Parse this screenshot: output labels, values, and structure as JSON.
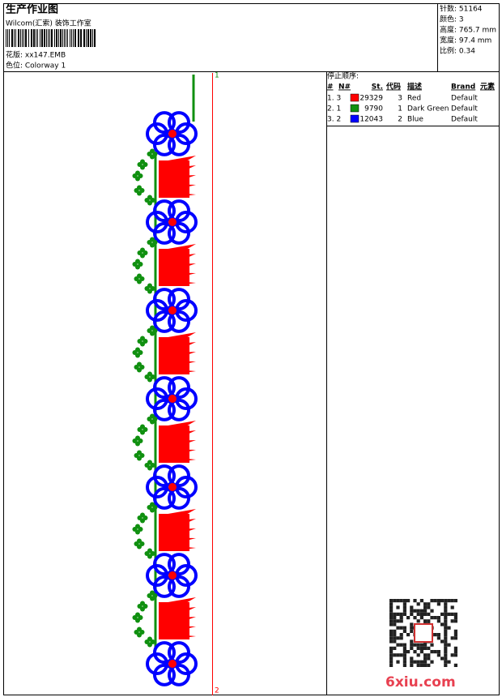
{
  "header": {
    "title": "生产作业图",
    "studio": "Wilcom(汇索) 装饰工作室",
    "design": "花版: xx147.EMB",
    "colorway": "色位: Colorway 1",
    "stats": [
      "针数: 51164",
      "颜色: 3",
      "高度: 765.7 mm",
      "宽度: 97.4 mm",
      "比例: 0.34"
    ]
  },
  "stop_sequence": {
    "title": "停止顺序:",
    "columns": [
      "#",
      "N#",
      "St.",
      "代码",
      "描述",
      "Brand",
      "元素"
    ],
    "rows": [
      {
        "index": "1. 3",
        "color": "#ff0000",
        "stitches": "29329",
        "code": "3",
        "description": "Red",
        "brand": "Default"
      },
      {
        "index": "2. 1",
        "color": "#109010",
        "stitches": "9790",
        "code": "1",
        "description": "Dark Green",
        "brand": "Default"
      },
      {
        "index": "3. 2",
        "color": "#0000ff",
        "stitches": "12043",
        "code": "2",
        "description": "Blue",
        "brand": "Default"
      }
    ]
  },
  "markers": {
    "start": "1",
    "end": "2"
  },
  "watermark": "6xiu.com"
}
